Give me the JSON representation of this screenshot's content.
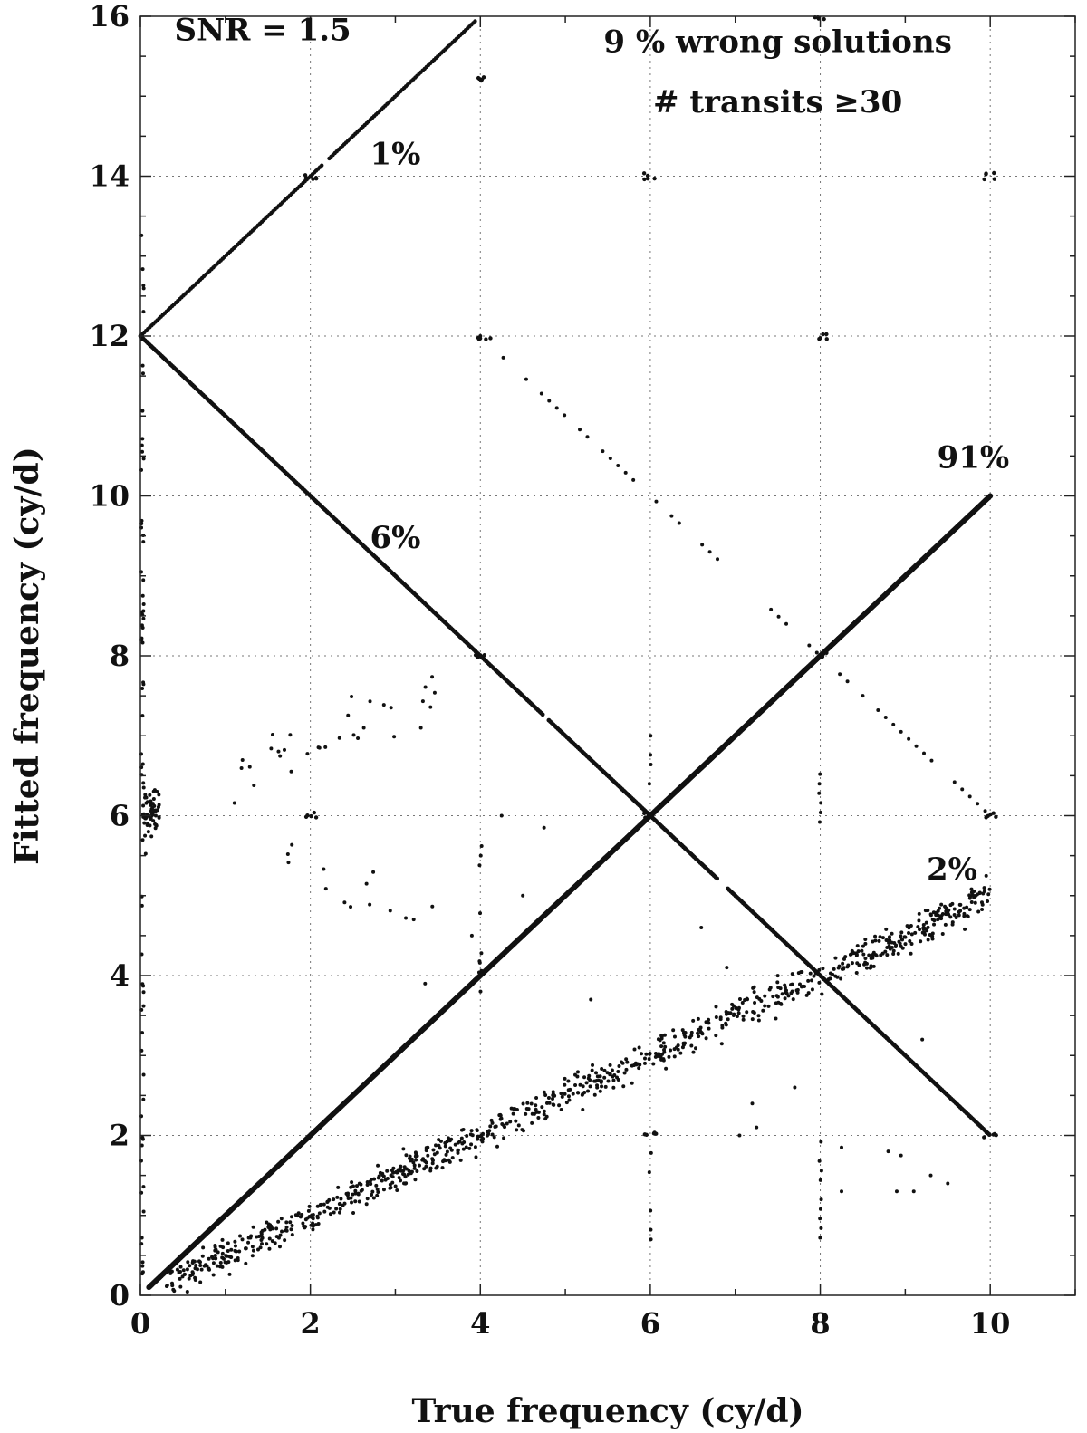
{
  "chart_data": {
    "type": "scatter",
    "xlabel": "True frequency (cy/d)",
    "ylabel": "Fitted frequency (cy/d)",
    "xlim": [
      0,
      11
    ],
    "ylim": [
      0,
      16
    ],
    "xticks": [
      "0",
      "2",
      "4",
      "6",
      "8",
      "10"
    ],
    "yticks": [
      "0",
      "2",
      "4",
      "6",
      "8",
      "10",
      "12",
      "14",
      "16"
    ],
    "grid": true,
    "annotations": [
      {
        "id": "snr",
        "text": "SNR = 1.5",
        "x": 0.4,
        "y": 15.7
      },
      {
        "id": "wrong",
        "text": "9 % wrong solutions",
        "x": 7.5,
        "y": 15.55
      },
      {
        "id": "transits",
        "text": "# transits ≥30",
        "x": 7.5,
        "y": 14.8
      },
      {
        "id": "p1",
        "text": "1%",
        "x": 3.0,
        "y": 14.15
      },
      {
        "id": "p6",
        "text": "6%",
        "x": 3.0,
        "y": 9.35
      },
      {
        "id": "p91",
        "text": "91%",
        "x": 9.8,
        "y": 10.35
      },
      {
        "id": "p2",
        "text": "2%",
        "x": 9.55,
        "y": 5.2
      }
    ],
    "series": [
      {
        "description": "true solution y = x, 91%",
        "x_range": [
          0.1,
          10.0
        ],
        "relation": "y = x"
      },
      {
        "description": "alias y = 12 - x, 6%",
        "x_range": [
          0.0,
          10.0
        ],
        "relation": "y = 12 - x"
      },
      {
        "description": "alias y = 12 + x, 1%",
        "x_range": [
          0.0,
          3.95
        ],
        "relation": "y = 12 + x"
      },
      {
        "description": "alias y = 0.5 x, 2%",
        "x_range": [
          0.3,
          10.0
        ],
        "relation": "y = 0.5 x (scattered)"
      }
    ]
  }
}
